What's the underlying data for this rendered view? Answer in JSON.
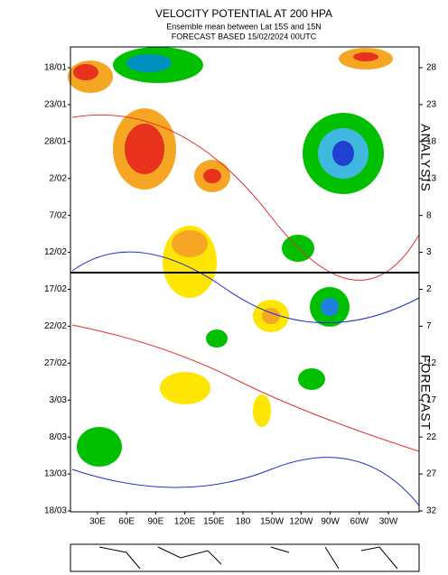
{
  "chart_data": {
    "type": "hovmoller",
    "title": "VELOCITY POTENTIAL AT 200 HPA",
    "subtitle": "Ensemble mean between  Lat 15S and 15N",
    "forecast_note": "FORECAST  BASED 15/02/2024 00UTC",
    "categories": [
      "18/01",
      "23/01",
      "28/01",
      "2/02",
      "7/02",
      "12/02",
      "17/02",
      "22/02",
      "27/02",
      "3/03",
      "8/03",
      "13/03",
      "18/03"
    ],
    "right_labels": [
      28,
      23,
      18,
      13,
      8,
      3,
      2,
      7,
      12,
      17,
      22,
      27,
      32
    ],
    "x_labels": [
      "30E",
      "60E",
      "90E",
      "120E",
      "150E",
      "180",
      "150W",
      "120W",
      "90W",
      "60W",
      "30W"
    ],
    "analysis_label": "ANALYSIS",
    "forecast_label": "FORECAST"
  }
}
